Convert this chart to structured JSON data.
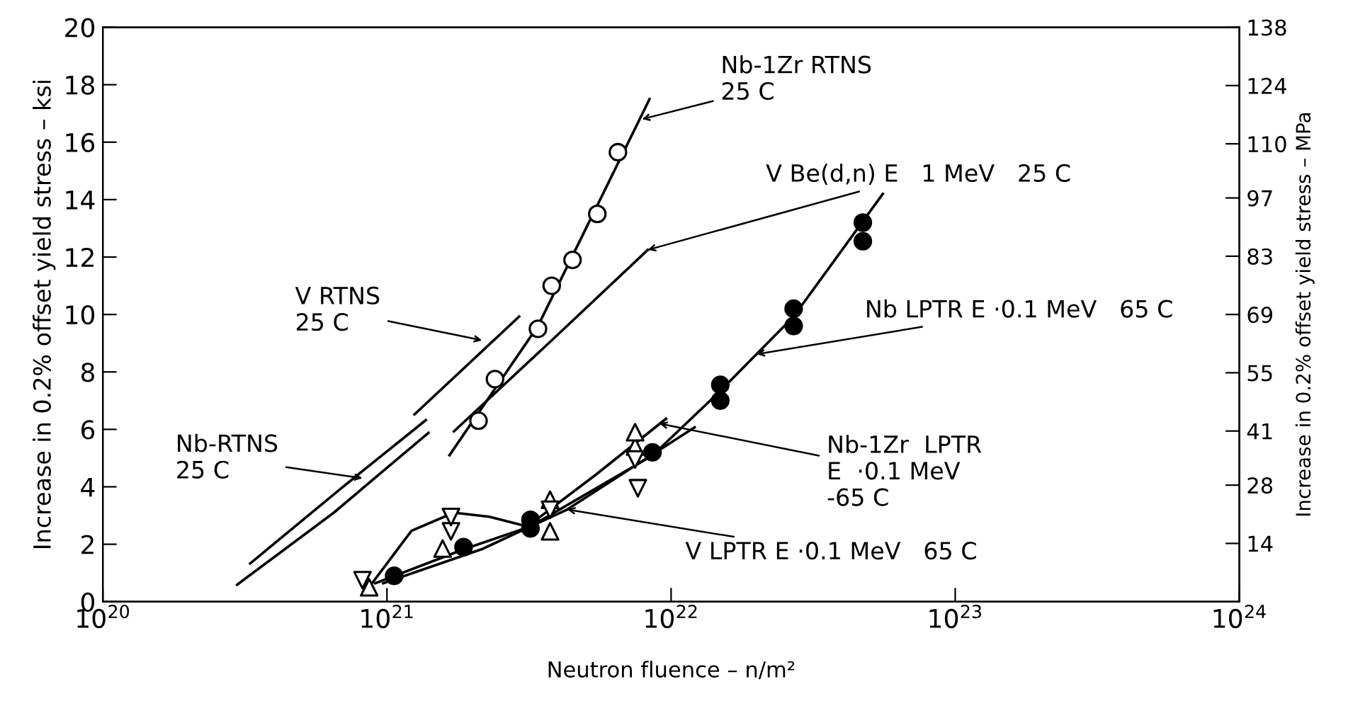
{
  "chart_data": {
    "type": "line",
    "xlabel": "Neutron fluence – n/m²",
    "ylabel": "Increase in 0.2% offset yield stress – ksi",
    "y2label": "Increase in 0.2% offset yield stress – MPa",
    "log": "x",
    "grid": false,
    "xlim": [
      1e+20,
      1e+24
    ],
    "xticks": [
      {
        "value": 1e+20,
        "label": "10$^{20}$"
      },
      {
        "value": 1e+21,
        "label": "10$^{21}$"
      },
      {
        "value": 1e+22,
        "label": "10$^{22}$"
      },
      {
        "value": 1e+23,
        "label": "10$^{23}$"
      },
      {
        "value": 1e+24,
        "label": "10$^{24}$"
      }
    ],
    "ylim": [
      0,
      20
    ],
    "yticks": [
      0,
      2,
      4,
      6,
      8,
      10,
      12,
      14,
      16,
      18,
      20
    ],
    "y2lim": [
      0,
      138
    ],
    "y2ticks": [
      14,
      28,
      41,
      55,
      69,
      83,
      97,
      110,
      124,
      138
    ],
    "series": [
      {
        "type": "scatter",
        "marker": "circle",
        "color": "#ffffff",
        "x": [
          2.1e+21,
          2.4e+21,
          3.4e+21,
          3.8e+21,
          4.5e+21,
          5.5e+21,
          6.5e+21
        ],
        "values": [
          6.3,
          7.75,
          9.5,
          11.0,
          11.9,
          13.5,
          15.65
        ]
      },
      {
        "color": "#000000",
        "x": [
          1.66e+21,
          3.4e+21,
          8.4e+21
        ],
        "values": [
          5.1,
          9.6,
          17.5
        ]
      },
      {
        "color": "#000000",
        "x": [
          2.97e+20,
          6.5e+20,
          1.4e+21
        ],
        "values": [
          0.59,
          3.1,
          5.88
        ]
      },
      {
        "color": "#000000",
        "x": [
          3.3e+20,
          6.9e+20,
          1.37e+21
        ],
        "values": [
          1.33,
          3.95,
          6.32
        ]
      },
      {
        "color": "#000000",
        "x": [
          1.25e+21,
          2.92e+21
        ],
        "values": [
          6.52,
          9.93
        ]
      },
      {
        "color": "#000000",
        "x": [
          1.72e+21,
          3.84e+21,
          8.28e+21
        ],
        "values": [
          5.93,
          9.14,
          12.25
        ]
      },
      {
        "color": "#000000",
        "x": [
          9.1e+20,
          1.87e+21,
          3.2e+21,
          8.6e+21,
          1.48e+22,
          2.7e+22,
          5.56e+22
        ],
        "values": [
          0.64,
          1.83,
          2.62,
          5.09,
          7.31,
          9.93,
          14.2
        ]
      },
      {
        "color": "#000000",
        "x": [
          8.8e+20,
          1.22e+21,
          1.72e+21,
          2.29e+21,
          3.12e+21,
          5.4e+21,
          9.6e+21
        ],
        "values": [
          0.6,
          2.47,
          3.1,
          2.96,
          2.62,
          4.4,
          6.37
        ]
      },
      {
        "color": "#000000",
        "x": [
          9.7e+20,
          2.16e+21,
          4.31e+21,
          1.21e+22
        ],
        "values": [
          0.64,
          1.83,
          3.21,
          6.07
        ]
      },
      {
        "type": "scatter",
        "marker": "circle",
        "color": "#000000",
        "x": [
          1.06e+21,
          1.86e+21,
          3.2e+21,
          3.2e+21,
          8.6e+21,
          1.49e+22,
          1.49e+22,
          2.7e+22,
          2.7e+22,
          4.73e+22,
          4.73e+22
        ],
        "values": [
          0.9,
          1.9,
          2.55,
          2.85,
          5.2,
          7.0,
          7.55,
          9.6,
          10.2,
          12.55,
          13.2
        ]
      },
      {
        "type": "scatter",
        "marker": "triangle",
        "color": "#ffffff",
        "x": [
          8.66e+20,
          1.57e+21,
          3.75e+21,
          3.75e+21,
          7.47e+21,
          7.47e+21
        ],
        "values": [
          0.5,
          1.85,
          2.45,
          3.55,
          5.4,
          5.9
        ]
      },
      {
        "type": "scatter",
        "marker": "triangle_down",
        "color": "#ffffff",
        "x": [
          8.2e+20,
          1.68e+21,
          1.68e+21,
          3.75e+21,
          7.47e+21,
          7.64e+21
        ],
        "values": [
          0.75,
          2.45,
          2.95,
          3.2,
          4.95,
          3.95
        ]
      }
    ],
    "annotations": [
      {
        "text": "Nb-1Zr RTNS\n25 C",
        "x": 7.9e+21,
        "y": 16.8
      },
      {
        "text": "V Be(d,n) E   1 MeV   25 C",
        "x": 8.28e+21,
        "y": 12.25
      },
      {
        "text": "V RTNS\n25 C",
        "x": 2.16e+21,
        "y": 9.1
      },
      {
        "text": "Nb-RTNS\n25 C",
        "x": 8.2e+20,
        "y": 4.3
      },
      {
        "text": "Nb LPTR E ·0.1 MeV   65 C",
        "x": 2e+22,
        "y": 8.62
      },
      {
        "text": "Nb-1Zr  LPTR\nE  ·0.1 MeV\n-65 C",
        "x": 9.1e+21,
        "y": 6.2
      },
      {
        "text": "V LPTR E ·0.1 MeV   65 C",
        "x": 4.31e+21,
        "y": 3.21
      }
    ]
  }
}
